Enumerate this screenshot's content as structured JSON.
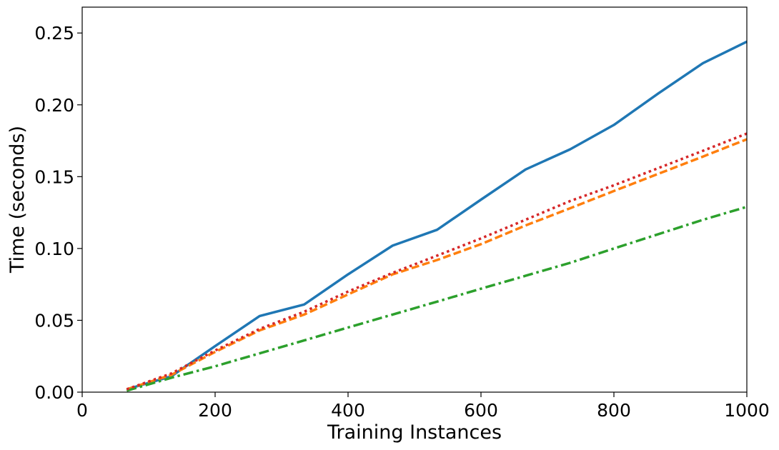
{
  "chart_data": {
    "type": "line",
    "title": "",
    "xlabel": "Training Instances",
    "ylabel": "Time (seconds)",
    "xlim": [
      0,
      1000
    ],
    "ylim": [
      0,
      0.268
    ],
    "xticks": [
      0,
      200,
      400,
      600,
      800,
      1000
    ],
    "xtick_labels": [
      "0",
      "200",
      "400",
      "600",
      "800",
      "1000"
    ],
    "yticks": [
      0,
      0.05,
      0.1,
      0.15,
      0.2,
      0.25
    ],
    "ytick_labels": [
      "0.00",
      "0.05",
      "0.10",
      "0.15",
      "0.20",
      "0.25"
    ],
    "grid": false,
    "legend": "none",
    "x": [
      67,
      134,
      200,
      267,
      334,
      400,
      467,
      534,
      600,
      667,
      734,
      800,
      867,
      934,
      1000
    ],
    "series": [
      {
        "color": "#1f77b4",
        "style": "solid",
        "values": [
          0.002,
          0.011,
          0.032,
          0.053,
          0.061,
          0.082,
          0.102,
          0.113,
          0.134,
          0.155,
          0.169,
          0.186,
          0.208,
          0.229,
          0.244
        ]
      },
      {
        "color": "#ff7f0e",
        "style": "dashed",
        "values": [
          0.002,
          0.012,
          0.028,
          0.043,
          0.054,
          0.068,
          0.082,
          0.092,
          0.103,
          0.116,
          0.128,
          0.14,
          0.152,
          0.164,
          0.176
        ]
      },
      {
        "color": "#2ca02c",
        "style": "dashdot",
        "values": [
          0.001,
          0.01,
          0.018,
          0.027,
          0.036,
          0.045,
          0.054,
          0.063,
          0.072,
          0.081,
          0.09,
          0.1,
          0.11,
          0.12,
          0.129
        ]
      },
      {
        "color": "#d62728",
        "style": "dotted",
        "values": [
          0.002,
          0.013,
          0.029,
          0.044,
          0.056,
          0.07,
          0.083,
          0.095,
          0.107,
          0.12,
          0.133,
          0.144,
          0.156,
          0.168,
          0.18
        ]
      }
    ]
  }
}
